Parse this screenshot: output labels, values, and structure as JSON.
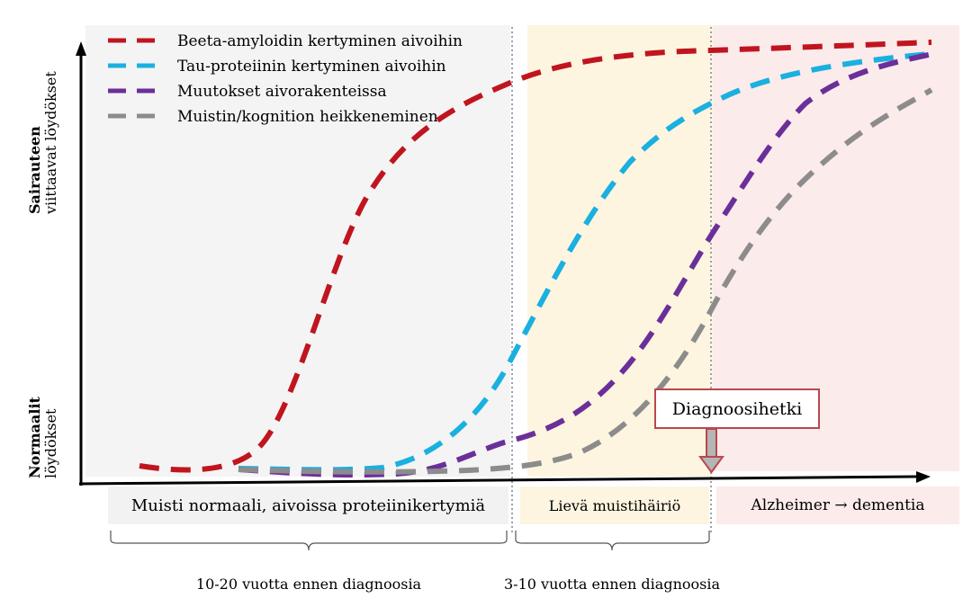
{
  "legend": [
    {
      "label": "Beeta-amyloidin kertyminen aivoihin",
      "color": "#c0151f"
    },
    {
      "label": "Tau-proteiinin kertyminen aivoihin",
      "color": "#1ab0e0"
    },
    {
      "label": "Muutokset aivorakenteissa",
      "color": "#6b2f9a"
    },
    {
      "label": "Muistin/kognition heikkeneminen",
      "color": "#8c8c8c"
    }
  ],
  "y_axis": {
    "top_label_bold": "Sairauteen",
    "top_label": "viittaavat löydökset",
    "bottom_label_bold": "Normaalit",
    "bottom_label": "löydökset"
  },
  "phases": [
    {
      "label": "Muisti normaali, aivoissa proteiinikertymiä",
      "color": "#f4f4f4"
    },
    {
      "label": "Lievä muistihäiriö",
      "color": "#fdf5e0"
    },
    {
      "label": "Alzheimer → dementia",
      "color": "#fcebeb"
    }
  ],
  "braces": [
    {
      "label": "10-20 vuotta ennen diagnoosia"
    },
    {
      "label": "3-10 vuotta ennen diagnoosia"
    }
  ],
  "diagnosis_label": "Diagnoosihetki"
}
